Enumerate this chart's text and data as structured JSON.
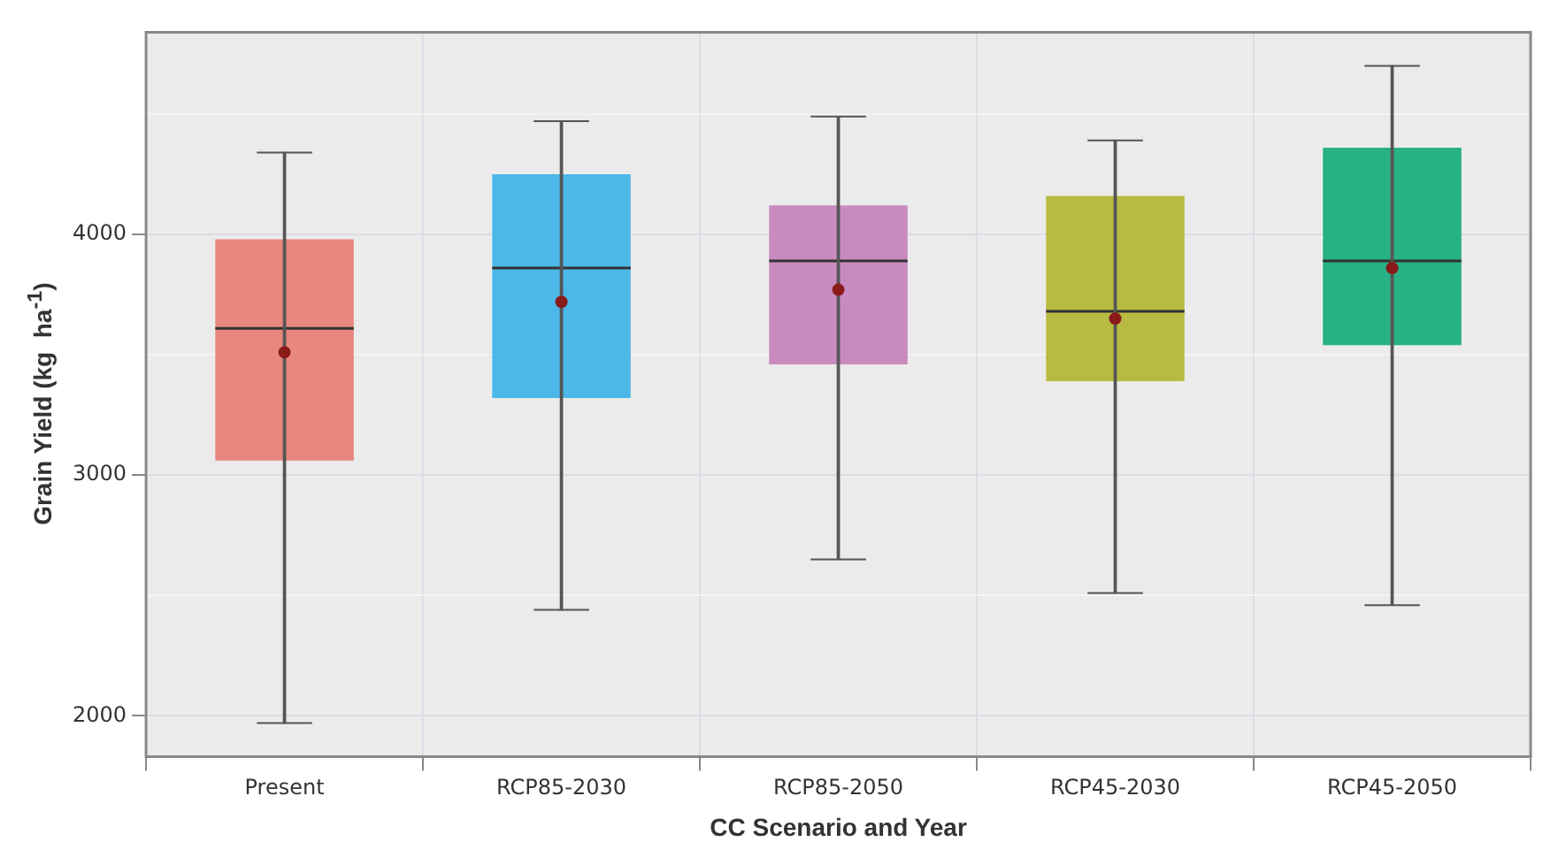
{
  "chart_data": {
    "type": "box",
    "xlabel": "CC Scenario and Year",
    "ylabel": "Grain Yield (kg  ha$^{-1}$)",
    "categories": [
      "Present",
      "RCP85-2030",
      "RCP85-2050",
      "RCP45-2030",
      "RCP45-2050"
    ],
    "colors": [
      "#e8877f",
      "#4cb8e8",
      "#c98bbf",
      "#b8bb42",
      "#27b184"
    ],
    "boxes": [
      {
        "low": 1970,
        "q1": 3060,
        "median": 3610,
        "q3": 3980,
        "high": 4340,
        "mean": 3510
      },
      {
        "low": 2440,
        "q1": 3320,
        "median": 3860,
        "q3": 4250,
        "high": 4470,
        "mean": 3720
      },
      {
        "low": 2650,
        "q1": 3460,
        "median": 3890,
        "q3": 4120,
        "high": 4490,
        "mean": 3770
      },
      {
        "low": 2510,
        "q1": 3390,
        "median": 3680,
        "q3": 4160,
        "high": 4390,
        "mean": 3650
      },
      {
        "low": 2460,
        "q1": 3540,
        "median": 3890,
        "q3": 4360,
        "high": 4700,
        "mean": 3860
      }
    ],
    "ylim": [
      1830,
      4840
    ],
    "yticks": [
      2000,
      {
        "value": 2500,
        "label": null
      },
      3000,
      {
        "value": 3500,
        "label": null
      },
      4000,
      {
        "value": 4500,
        "label": null
      }
    ],
    "grid": true
  }
}
